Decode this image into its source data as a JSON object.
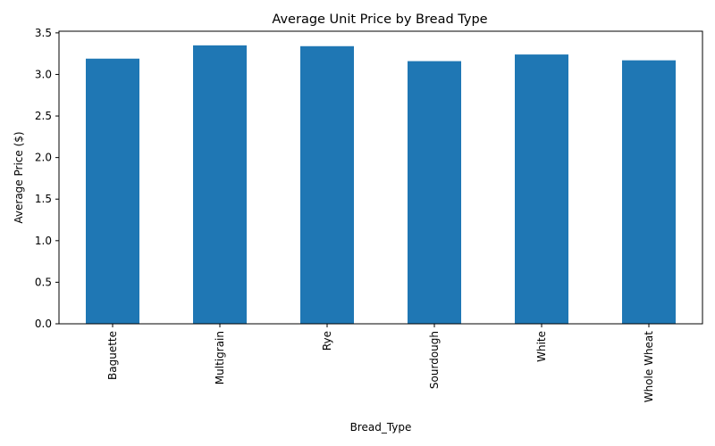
{
  "chart_data": {
    "type": "bar",
    "title": "Average Unit Price by Bread Type",
    "xlabel": "Bread_Type",
    "ylabel": "Average Price ($)",
    "categories": [
      "Baguette",
      "Multigrain",
      "Rye",
      "Sourdough",
      "White",
      "Whole Wheat"
    ],
    "values": [
      3.19,
      3.35,
      3.34,
      3.16,
      3.24,
      3.17
    ],
    "ylim": [
      0,
      3.52
    ],
    "yticks": [
      "0.0",
      "0.5",
      "1.0",
      "1.5",
      "2.0",
      "2.5",
      "3.0",
      "3.5"
    ],
    "bar_color": "#1f77b4",
    "grid": false,
    "legend": "none"
  }
}
